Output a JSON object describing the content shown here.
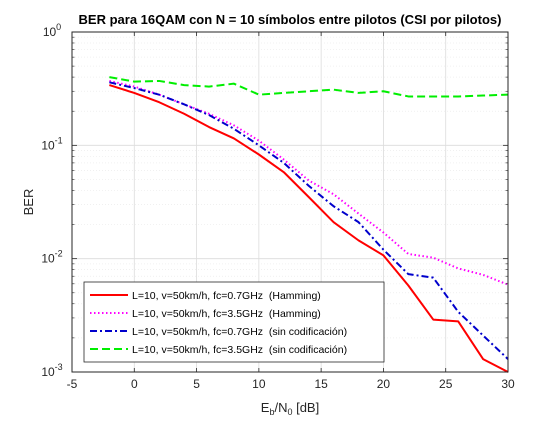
{
  "chart_data": {
    "type": "line",
    "title": "BER para 16QAM con N = 10 símbolos entre pilotos (CSI por pilotos)",
    "xlabel": {
      "base": "E",
      "sub1": "b",
      "mid": "/N",
      "sub2": "0",
      "unit": " [dB]"
    },
    "ylabel": "BER",
    "xlim": [
      -5,
      30
    ],
    "ylim": [
      0.001,
      1
    ],
    "yscale": "log",
    "grid": true,
    "legend_location": "lower-left",
    "x_ticks": [
      -5,
      0,
      5,
      10,
      15,
      20,
      25,
      30
    ],
    "x_tick_labels": [
      "-5",
      "0",
      "5",
      "10",
      "15",
      "20",
      "25",
      "30"
    ],
    "y_ticks": [
      0.001,
      0.01,
      0.1,
      1
    ],
    "y_tick_labels": [
      {
        "base": "10",
        "exp": "-3"
      },
      {
        "base": "10",
        "exp": "-2"
      },
      {
        "base": "10",
        "exp": "-1"
      },
      {
        "base": "10",
        "exp": "0"
      }
    ],
    "series": [
      {
        "name": "L=10, v=50km/h, fc=0.7GHz  (Hamming)",
        "color": "#ff0000",
        "dash": "solid",
        "x": [
          -2,
          0,
          2,
          4,
          6,
          8,
          10,
          12,
          14,
          16,
          18,
          20,
          22,
          24,
          26,
          28,
          30
        ],
        "y": [
          0.34,
          0.29,
          0.24,
          0.19,
          0.145,
          0.115,
          0.083,
          0.058,
          0.035,
          0.021,
          0.0145,
          0.0107,
          0.0058,
          0.0029,
          0.0028,
          0.0013,
          0.001
        ]
      },
      {
        "name": "L=10, v=50km/h, fc=3.5GHz  (Hamming)",
        "color": "#ff00ff",
        "dash": "dot",
        "x": [
          -2,
          0,
          2,
          4,
          6,
          8,
          10,
          12,
          14,
          16,
          18,
          20,
          22,
          24,
          26,
          28,
          30
        ],
        "y": [
          0.37,
          0.33,
          0.28,
          0.23,
          0.19,
          0.15,
          0.11,
          0.075,
          0.049,
          0.037,
          0.025,
          0.017,
          0.011,
          0.0102,
          0.0082,
          0.0072,
          0.0059
        ]
      },
      {
        "name": "L=10, v=50km/h, fc=0.7GHz  (sin codificación)",
        "color": "#0000cc",
        "dash": "dashdot",
        "x": [
          -2,
          0,
          2,
          4,
          6,
          8,
          10,
          12,
          14,
          16,
          18,
          20,
          22,
          24,
          26,
          28,
          30
        ],
        "y": [
          0.36,
          0.32,
          0.28,
          0.23,
          0.185,
          0.14,
          0.1,
          0.07,
          0.044,
          0.029,
          0.021,
          0.012,
          0.0073,
          0.0068,
          0.0034,
          0.0021,
          0.0013
        ]
      },
      {
        "name": "L=10, v=50km/h, fc=3.5GHz  (sin codificación)",
        "color": "#00ee00",
        "dash": "dash",
        "x": [
          -2,
          0,
          2,
          4,
          6,
          8,
          10,
          12,
          14,
          16,
          18,
          20,
          22,
          24,
          26,
          28,
          30
        ],
        "y": [
          0.4,
          0.365,
          0.37,
          0.34,
          0.33,
          0.35,
          0.28,
          0.29,
          0.3,
          0.31,
          0.29,
          0.3,
          0.27,
          0.27,
          0.27,
          0.275,
          0.28
        ]
      }
    ]
  }
}
